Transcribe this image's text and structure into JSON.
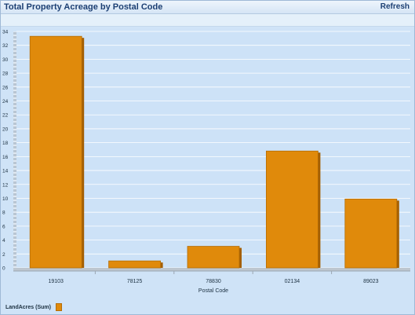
{
  "header": {
    "title": "Total Property Acreage by Postal Code",
    "refresh_label": "Refresh"
  },
  "chart_data": {
    "type": "bar",
    "categories": [
      "19103",
      "78125",
      "78830",
      "02134",
      "89023"
    ],
    "series": [
      {
        "name": "LandAcres (Sum)",
        "values": [
          33.3,
          1.0,
          3.1,
          16.8,
          9.9
        ]
      }
    ],
    "xlabel": "Postal Code",
    "ylabel": "",
    "ylim": [
      0,
      34
    ],
    "yticks": [
      0,
      2,
      4,
      6,
      8,
      10,
      12,
      14,
      16,
      18,
      20,
      22,
      24,
      26,
      28,
      30,
      32,
      34
    ],
    "grid": true,
    "legend_position": "bottom-left",
    "bar_color": "#e08a0b"
  }
}
